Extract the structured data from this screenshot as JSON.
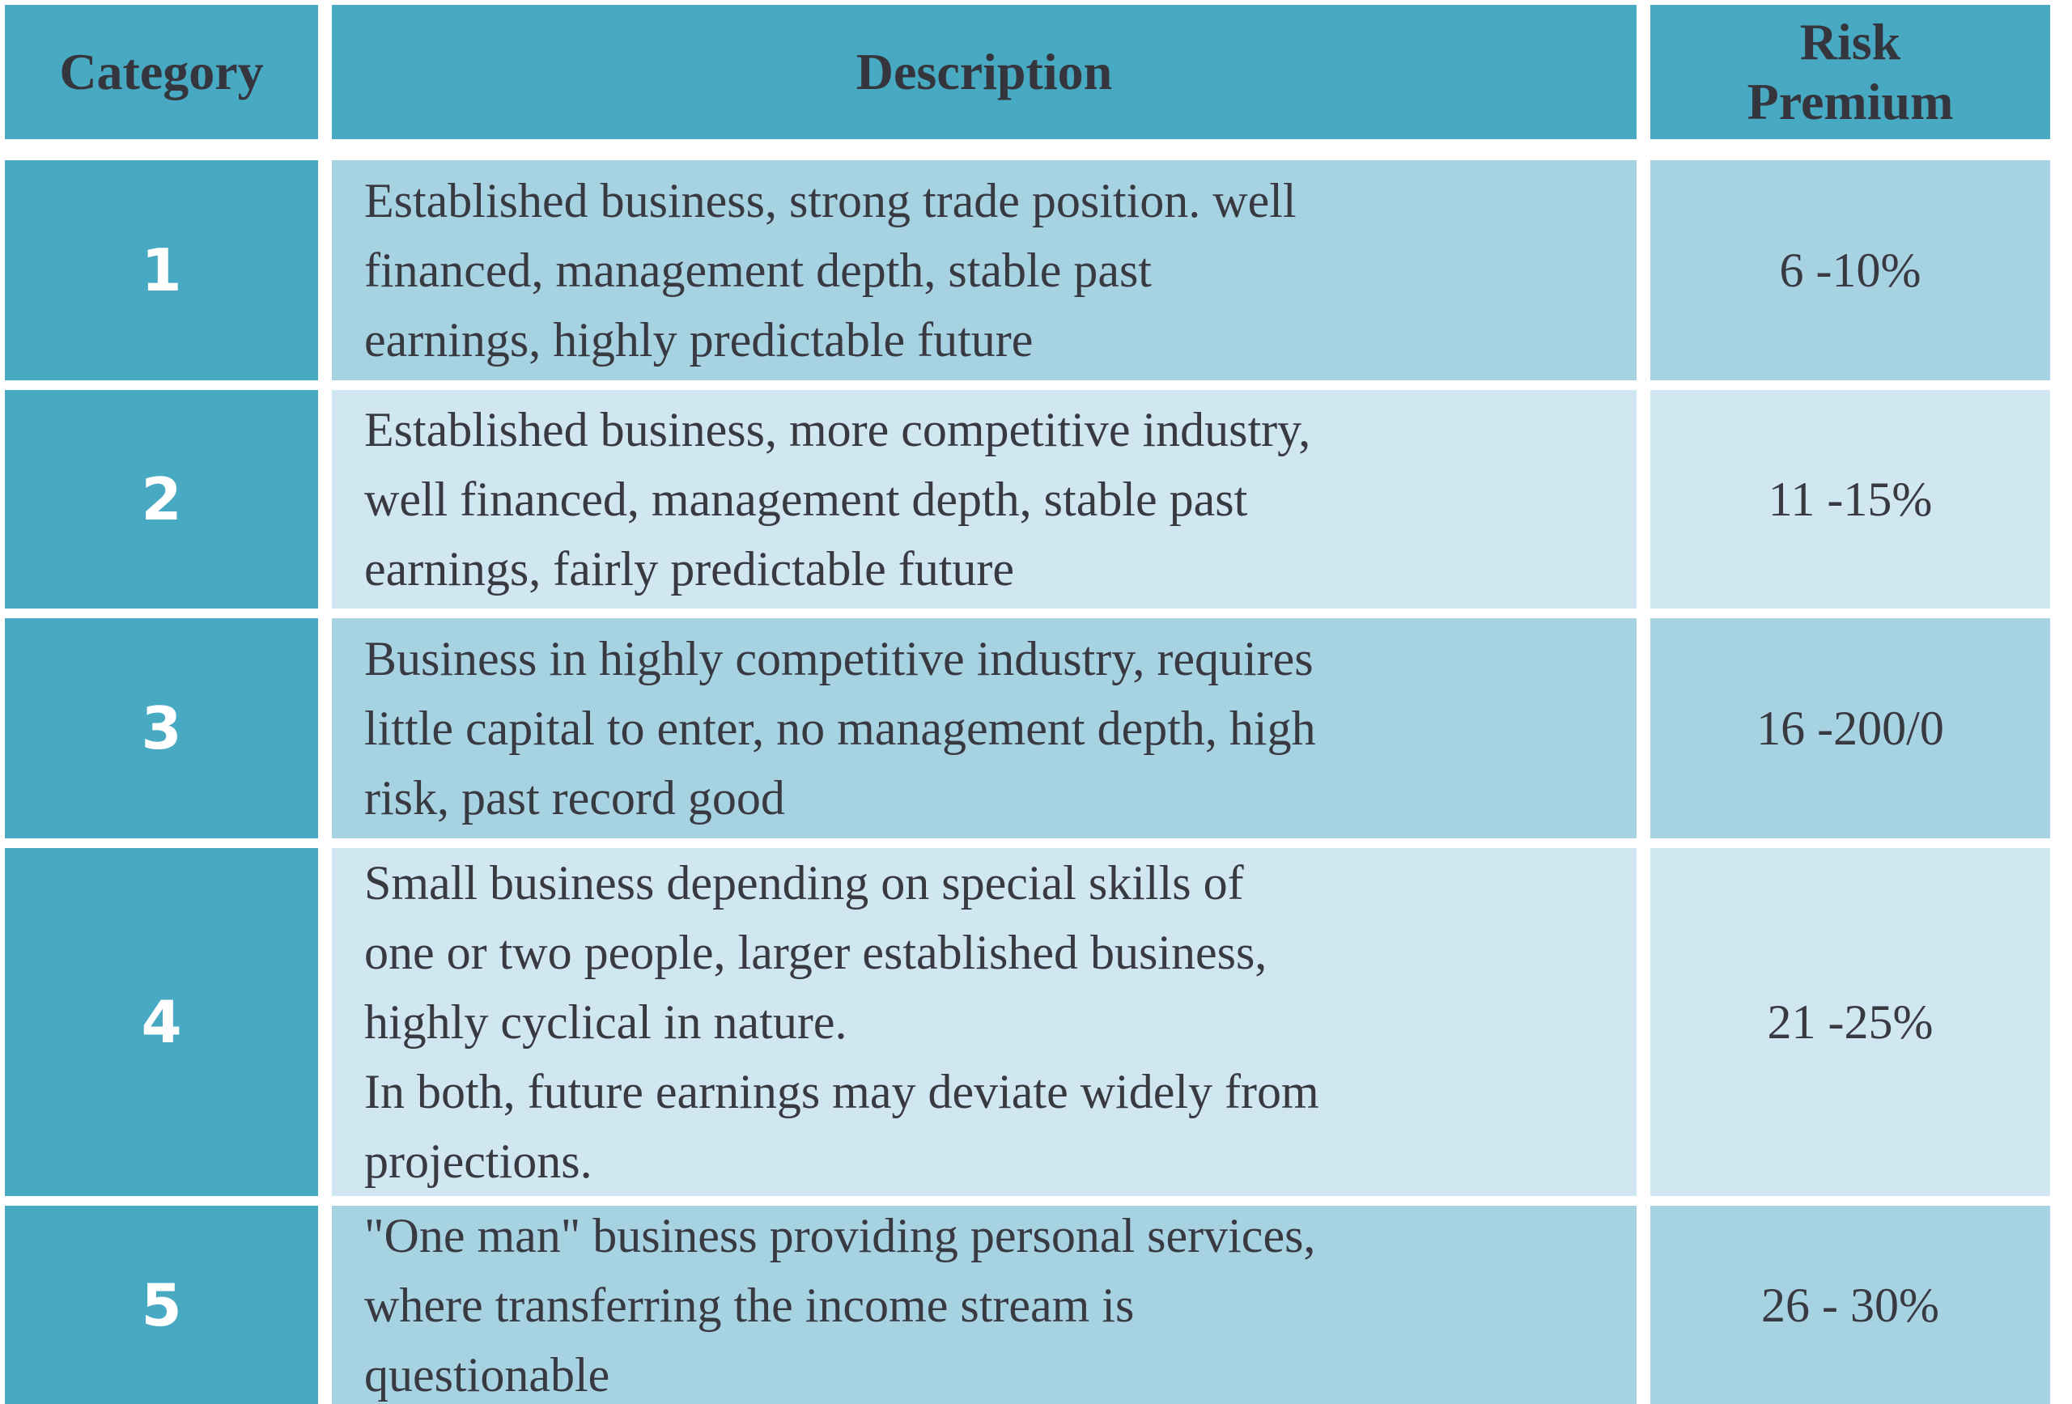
{
  "table": {
    "headers": {
      "category": "Category",
      "description": "Description",
      "risk_premium": "Risk\nPremium"
    },
    "rows": [
      {
        "category": "1",
        "description": "Established business, strong trade position. well\nfinanced, management depth, stable past\nearnings, highly predictable future",
        "risk_premium": "6 -10%"
      },
      {
        "category": "2",
        "description": "Established business, more competitive industry,\nwell financed, management depth, stable past\nearnings, fairly predictable future",
        "risk_premium": "11 -15%"
      },
      {
        "category": "3",
        "description": "Business in highly competitive industry, requires\nlittle capital to enter, no management depth, high\nrisk, past record good",
        "risk_premium": "16 -200/0"
      },
      {
        "category": "4",
        "description": "Small business depending on special skills of\none or two people, larger established business,\nhighly cyclical in nature.\nIn both, future earnings may deviate widely from\nprojections.",
        "risk_premium": "21 -25%"
      },
      {
        "category": "5",
        "description": "\"One man\" business providing personal services,\nwhere transferring the income stream is\nquestionable",
        "risk_premium": "26 - 30%"
      }
    ]
  },
  "colors": {
    "header_teal": "#47a9c2",
    "row_light": "#a6d2e2",
    "row_lighter": "#d0e6f0",
    "text_dark": "#393941",
    "category_text": "#ffffff",
    "background": "#ffffff"
  }
}
